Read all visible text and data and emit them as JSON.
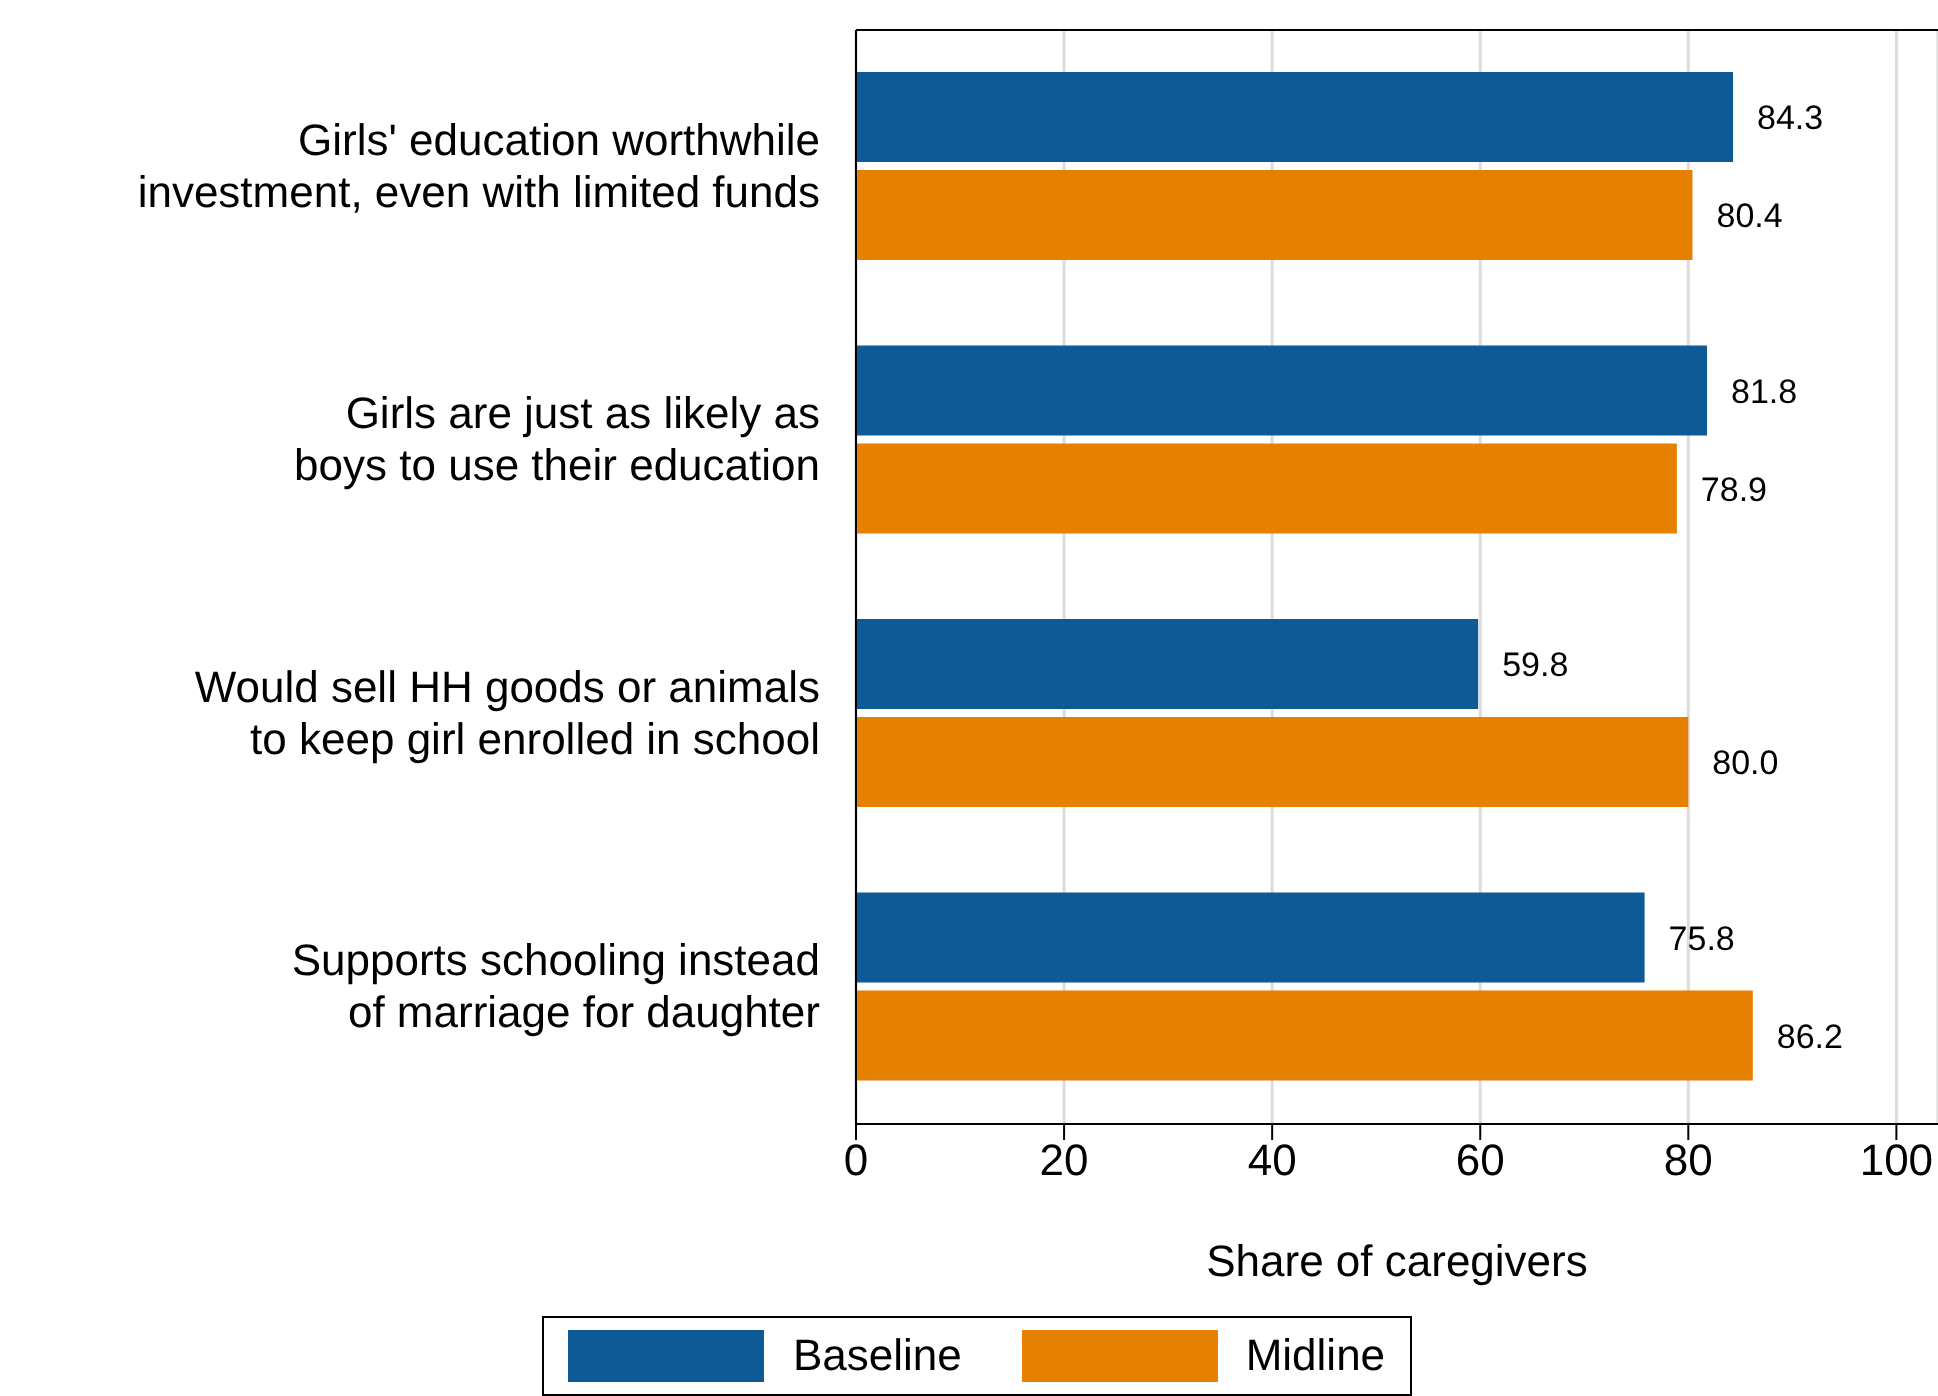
{
  "chart_data": {
    "type": "bar",
    "orientation": "horizontal",
    "xlabel": "Share of caregivers",
    "categories": [
      "Girls' education worthwhile investment, even with limited funds",
      "Girls are just as likely as boys to use their education",
      "Would sell HH goods or animals to keep girl enrolled in school",
      "Supports schooling instead of marriage for daughter"
    ],
    "series": [
      {
        "name": "Baseline",
        "color": "#0e5a97",
        "values": [
          84.3,
          81.8,
          59.8,
          75.8
        ],
        "value_labels": [
          "84.3",
          "81.8",
          "59.8",
          "75.8"
        ]
      },
      {
        "name": "Midline",
        "color": "#e68000",
        "values": [
          80.4,
          78.9,
          80.0,
          86.2
        ],
        "value_labels": [
          "80.4",
          "78.9",
          "80.0",
          "86.2"
        ]
      }
    ],
    "xlim": [
      0,
      104
    ],
    "xticks": [
      0,
      20,
      40,
      60,
      80,
      100
    ],
    "grid": "x",
    "legend": "bottom"
  }
}
